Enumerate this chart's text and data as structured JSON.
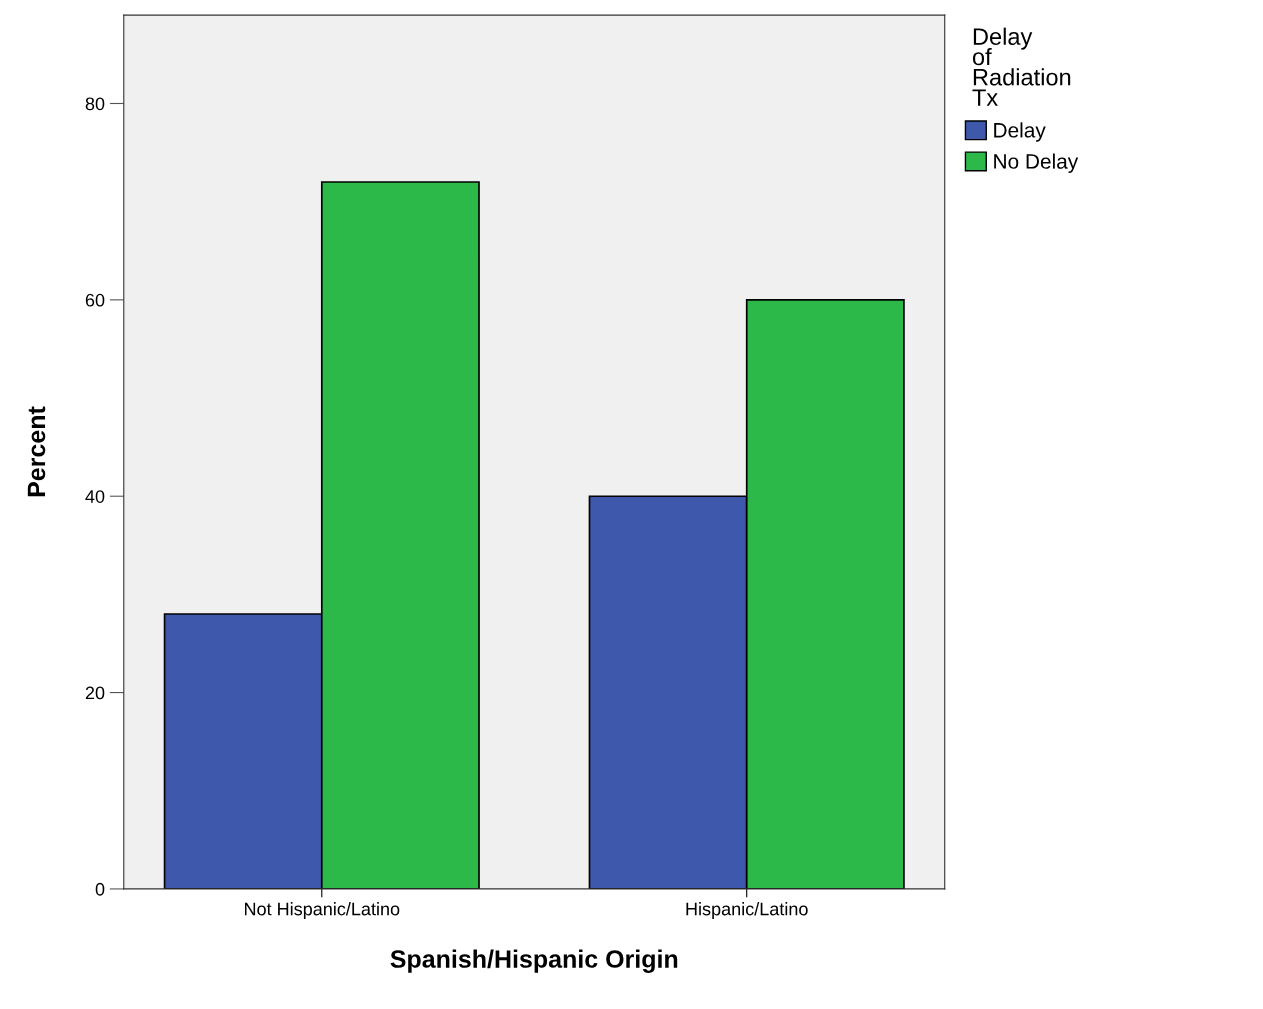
{
  "chart_data": {
    "type": "bar",
    "xlabel": "Spanish/Hispanic Origin",
    "ylabel": "Percent",
    "legend_title": "Delay of Radiation Tx",
    "categories": [
      "Not Hispanic/Latino",
      "Hispanic/Latino"
    ],
    "series": [
      {
        "name": "Delay",
        "color": "#3e58ac",
        "values": [
          28,
          40
        ]
      },
      {
        "name": "No Delay",
        "color": "#2db84a",
        "values": [
          72,
          60
        ]
      }
    ],
    "ylim": [
      0,
      89
    ],
    "yticks": [
      0,
      20,
      40,
      60,
      80
    ],
    "grid": false,
    "legend": "top right"
  }
}
